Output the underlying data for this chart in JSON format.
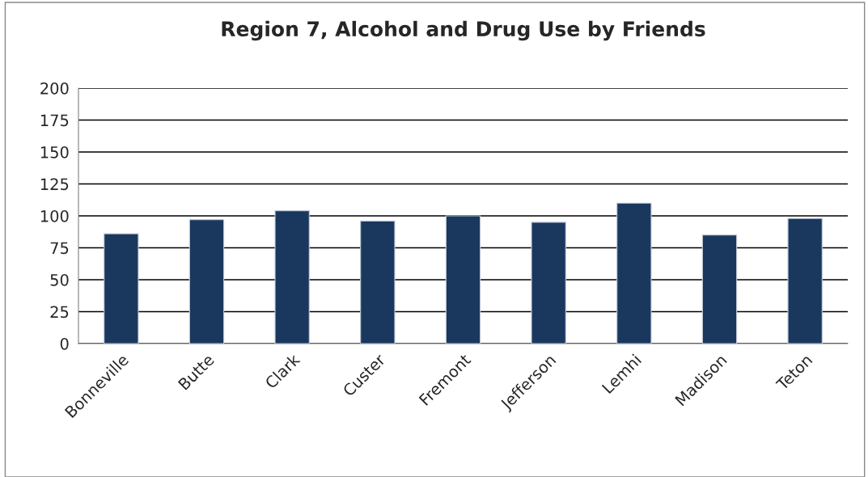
{
  "chart_data": {
    "type": "bar",
    "title": "Region 7, Alcohol and Drug Use by Friends",
    "categories": [
      "Bonneville",
      "Butte",
      "Clark",
      "Custer",
      "Fremont",
      "Jefferson",
      "Lemhi",
      "Madison",
      "Teton"
    ],
    "values": [
      86,
      97,
      104,
      96,
      100,
      95,
      110,
      85,
      98
    ],
    "color": "#1a375e",
    "ylim": [
      0,
      200
    ],
    "yticks": [
      0,
      25,
      50,
      75,
      100,
      125,
      150,
      175,
      200
    ],
    "grid": "y"
  }
}
